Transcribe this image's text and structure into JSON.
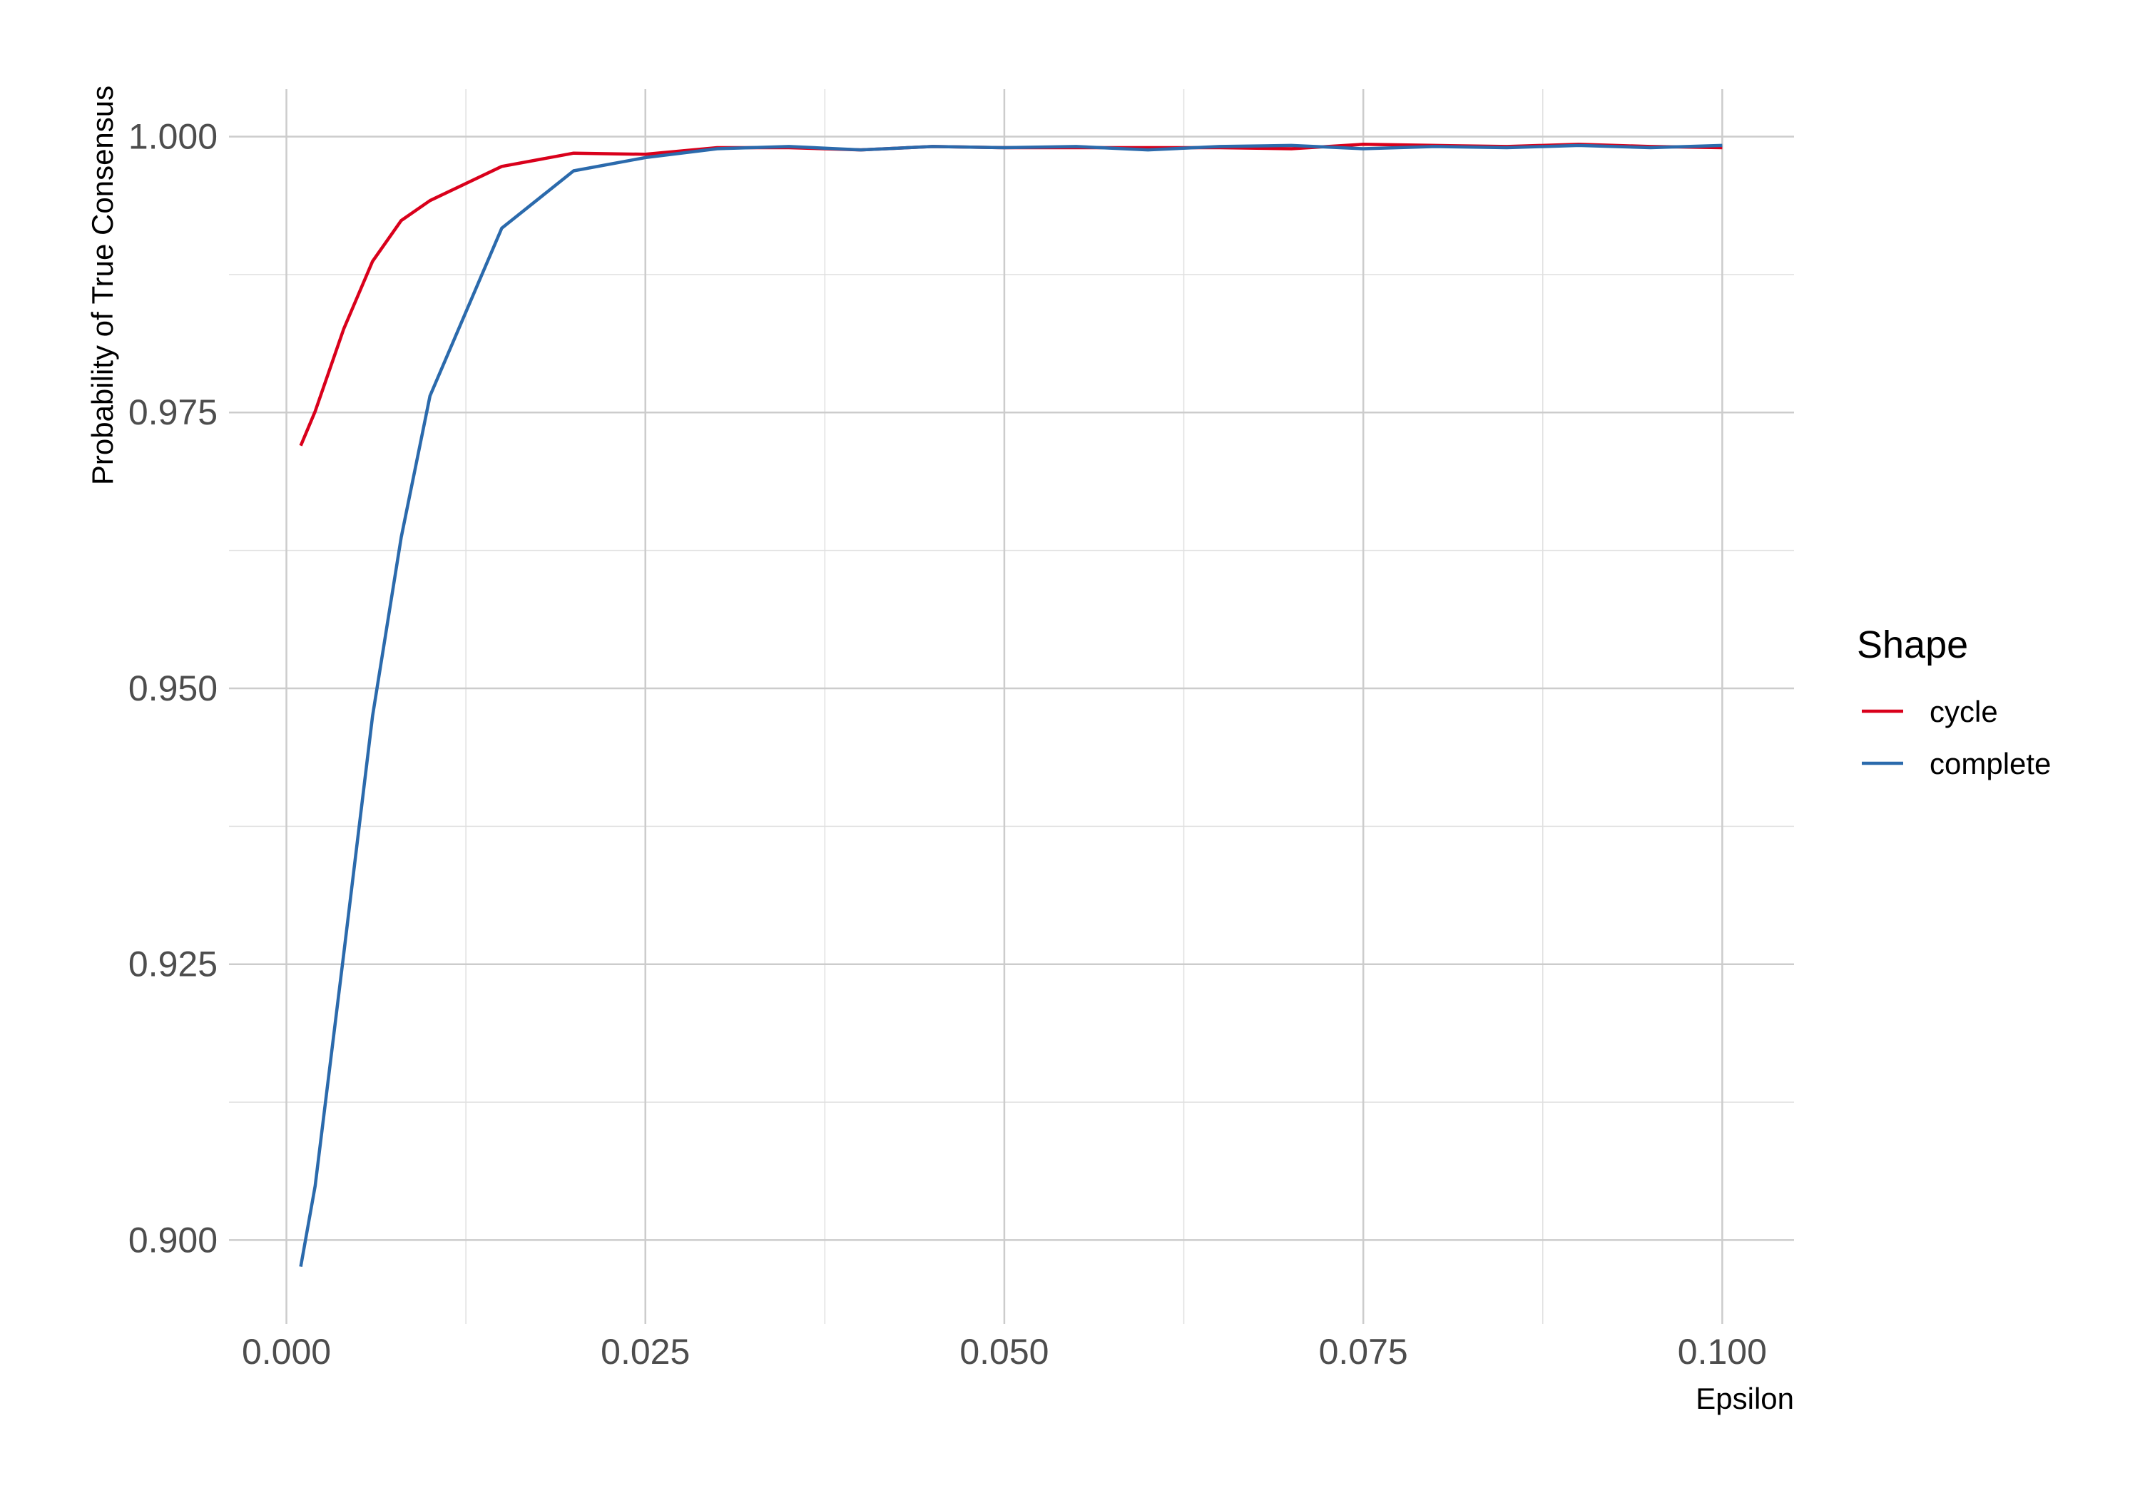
{
  "chart_data": {
    "type": "line",
    "title": "",
    "xlabel": "Epsilon",
    "ylabel": "Probability of True Consensus",
    "xlim": [
      -0.004,
      0.105
    ],
    "ylim": [
      0.8924,
      1.0043
    ],
    "x_ticks": [
      0.0,
      0.025,
      0.05,
      0.075,
      0.1
    ],
    "x_tick_labels": [
      "0.000",
      "0.025",
      "0.050",
      "0.075",
      "0.100"
    ],
    "y_ticks": [
      0.9,
      0.925,
      0.95,
      0.975,
      1.0
    ],
    "y_tick_labels": [
      "0.900",
      "0.925",
      "0.950",
      "0.975",
      "1.000"
    ],
    "grid": true,
    "legend": {
      "title": "Shape",
      "placement": "right"
    },
    "x": [
      0.001,
      0.002,
      0.004,
      0.006,
      0.008,
      0.01,
      0.015,
      0.02,
      0.025,
      0.03,
      0.035,
      0.04,
      0.045,
      0.05,
      0.055,
      0.06,
      0.065,
      0.07,
      0.075,
      0.08,
      0.085,
      0.09,
      0.095,
      0.1
    ],
    "series": [
      {
        "name": "cycle",
        "color": "#D9001B",
        "values": [
          0.972,
          0.9751,
          0.9826,
          0.9887,
          0.9924,
          0.9942,
          0.9973,
          0.9985,
          0.9984,
          0.999,
          0.999,
          0.9988,
          0.9991,
          0.999,
          0.999,
          0.999,
          0.999,
          0.9989,
          0.9993,
          0.9992,
          0.9991,
          0.9993,
          0.9991,
          0.999
        ]
      },
      {
        "name": "complete",
        "color": "#2B6AAC",
        "values": [
          0.8976,
          0.9049,
          0.926,
          0.9475,
          0.9637,
          0.9765,
          0.9917,
          0.9969,
          0.9981,
          0.9989,
          0.9991,
          0.9988,
          0.9991,
          0.999,
          0.9991,
          0.9988,
          0.9991,
          0.9992,
          0.9989,
          0.9991,
          0.999,
          0.9992,
          0.999,
          0.9992
        ]
      }
    ]
  }
}
